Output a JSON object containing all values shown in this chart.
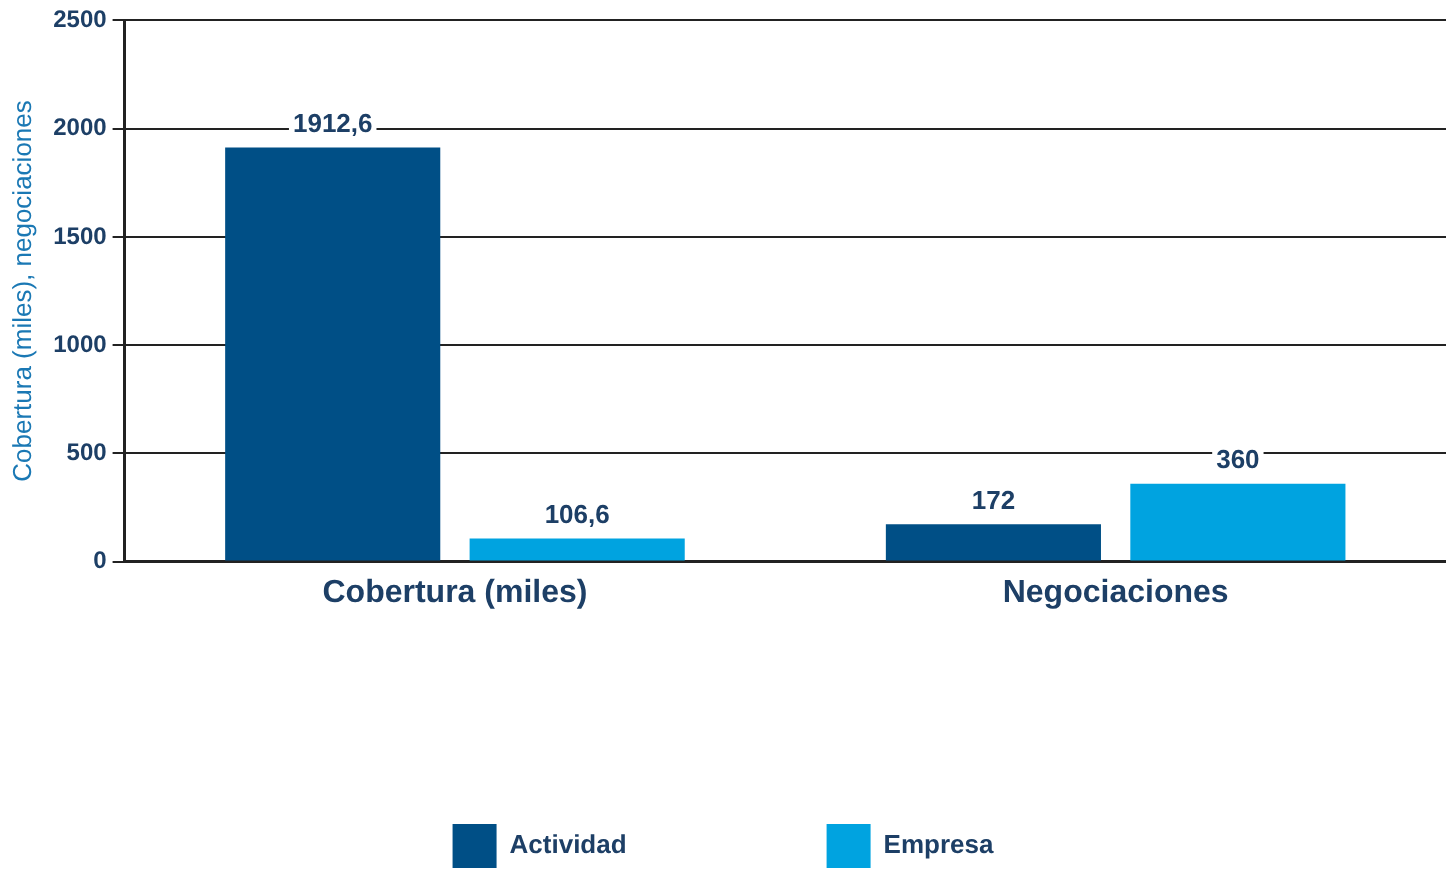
{
  "chart_data": {
    "type": "bar",
    "ylabel": "Cobertura (miles), negociaciones",
    "categories": [
      "Cobertura (miles)",
      "Negociaciones"
    ],
    "series": [
      {
        "name": "Actividad",
        "color": "#004f86",
        "values": [
          1912.6,
          172
        ],
        "value_labels": [
          "1912,6",
          "172"
        ]
      },
      {
        "name": "Empresa",
        "color": "#00a3e0",
        "values": [
          106.6,
          360
        ],
        "value_labels": [
          "106,6",
          "360"
        ]
      }
    ],
    "ylim": [
      0,
      2500
    ],
    "yticks": [
      0,
      500,
      1000,
      1500,
      2000,
      2500
    ],
    "grid": "y",
    "legend": "bottom"
  }
}
